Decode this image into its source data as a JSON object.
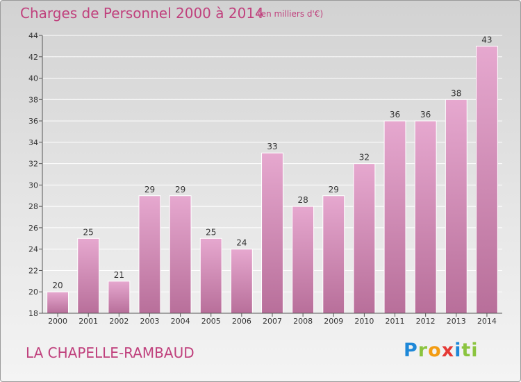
{
  "title": "Charges de Personnel 2000 à 2014",
  "subtitle": "(en milliers d'€)",
  "place": "LA CHAPELLE-RAMBAUD",
  "logo": [
    "P",
    "r",
    "o",
    "x",
    "i",
    "ti"
  ],
  "colors": {
    "title": "#c0417d",
    "bar_top": "#e6a8cf",
    "bar_bottom": "#b86f9a",
    "grid": "#ffffff"
  },
  "chart_data": {
    "type": "bar",
    "categories": [
      "2000",
      "2001",
      "2002",
      "2003",
      "2004",
      "2005",
      "2006",
      "2007",
      "2008",
      "2009",
      "2010",
      "2011",
      "2012",
      "2013",
      "2014"
    ],
    "values": [
      20,
      25,
      21,
      29,
      29,
      25,
      24,
      33,
      28,
      29,
      32,
      36,
      36,
      38,
      43
    ],
    "ylim": [
      18,
      44
    ],
    "yticks": [
      18,
      20,
      22,
      24,
      26,
      28,
      30,
      32,
      34,
      36,
      38,
      40,
      42,
      44
    ],
    "grid": true,
    "xlabel": "",
    "ylabel": ""
  }
}
